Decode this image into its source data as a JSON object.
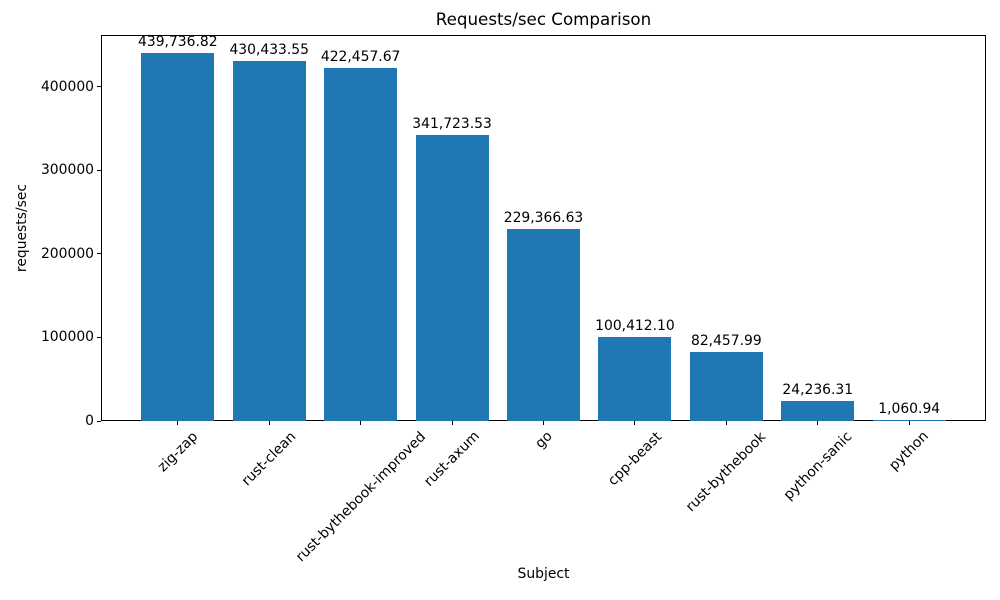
{
  "chart_data": {
    "type": "bar",
    "title": "Requests/sec Comparison",
    "xlabel": "Subject",
    "ylabel": "requests/sec",
    "categories": [
      "zig-zap",
      "rust-clean",
      "rust-bythebook-improved",
      "rust-axum",
      "go",
      "cpp-beast",
      "rust-bythebook",
      "python-sanic",
      "python"
    ],
    "values": [
      439736.82,
      430433.55,
      422457.67,
      341723.53,
      229366.63,
      100412.1,
      82457.99,
      24236.31,
      1060.94
    ],
    "value_labels": [
      "439,736.82",
      "430,433.55",
      "422,457.67",
      "341,723.53",
      "229,366.63",
      "100,412.10",
      "82,457.99",
      "24,236.31",
      "1,060.94"
    ],
    "bar_color": "#1f77b4",
    "text_color": "#000000",
    "xlim": [
      -0.84,
      8.84
    ],
    "ylim": [
      0,
      461724
    ],
    "bar_width": 0.8,
    "yticks": [
      0,
      100000,
      200000,
      300000,
      400000
    ],
    "ytick_labels": [
      "0",
      "100000",
      "200000",
      "300000",
      "400000"
    ],
    "x_tick_rotation_deg": 45,
    "grid": false,
    "legend": null
  }
}
